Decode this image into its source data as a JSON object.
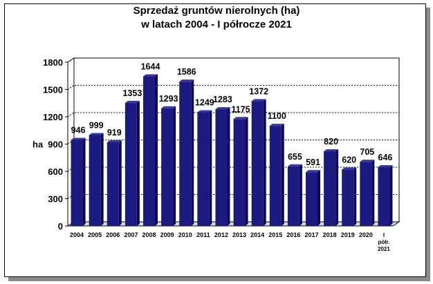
{
  "chart_data": {
    "type": "bar",
    "title": [
      "Sprzedaż gruntów nierolnych (ha)",
      "w latach 2004 - I półrocze 2021"
    ],
    "ylabel": "ha",
    "ylim": [
      0,
      1800
    ],
    "yticks": [
      "0",
      "300",
      "600",
      "900",
      "1200",
      "1500",
      "1800"
    ],
    "grid": true,
    "categories": [
      "2004",
      "2005",
      "2006",
      "2007",
      "2008",
      "2009",
      "2010",
      "2011",
      "2012",
      "2013",
      "2014",
      "2015",
      "2016",
      "2017",
      "2018",
      "2019",
      "2020",
      "I półr. 2021"
    ],
    "category_labels": [
      [
        "2004"
      ],
      [
        "2005"
      ],
      [
        "2006"
      ],
      [
        "2007"
      ],
      [
        "2008"
      ],
      [
        "2009"
      ],
      [
        "2010"
      ],
      [
        "2011"
      ],
      [
        "2012"
      ],
      [
        "2013"
      ],
      [
        "2014"
      ],
      [
        "2015"
      ],
      [
        "2016"
      ],
      [
        "2017"
      ],
      [
        "2018"
      ],
      [
        "2019"
      ],
      [
        "2020"
      ],
      [
        "I",
        "półr.",
        "2021"
      ]
    ],
    "values": [
      946,
      999,
      919,
      1353,
      1644,
      1293,
      1586,
      1249,
      1283,
      1175,
      1372,
      1100,
      655,
      591,
      820,
      620,
      705,
      646
    ],
    "value_labels": [
      "946",
      "999",
      "919",
      "1353",
      "1644",
      "1293",
      "1586",
      "1249",
      "1283",
      "1175",
      "1372",
      "1100",
      "655",
      "591",
      "820",
      "620",
      "705",
      "646"
    ],
    "colors": {
      "bar_front": "#1a1a80",
      "bar_side": "#0b0b4e",
      "bar_top": "#3535a8",
      "wall": "#ffffff"
    }
  }
}
